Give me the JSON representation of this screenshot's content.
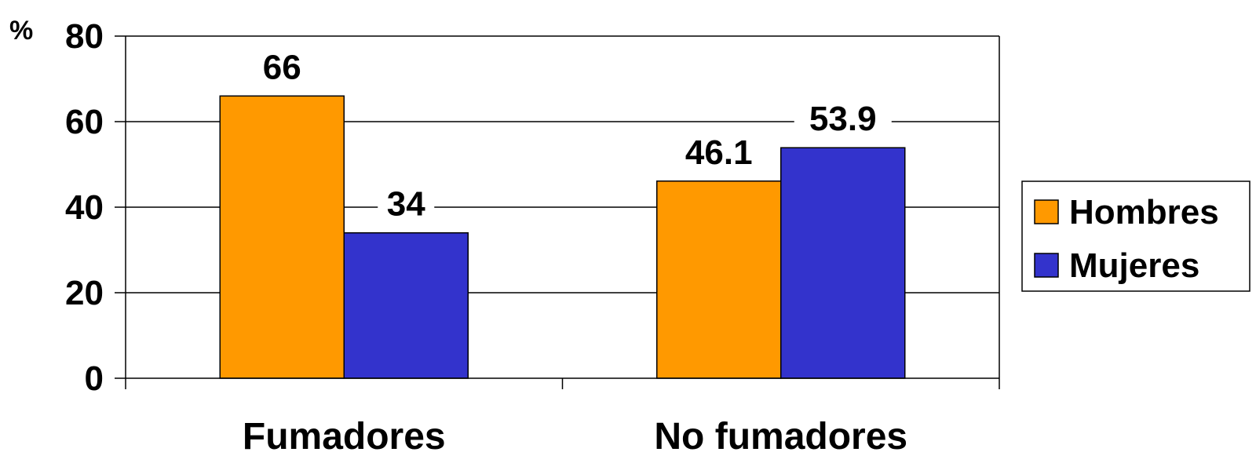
{
  "chart_data": {
    "type": "bar",
    "categories": [
      "Fumadores",
      "No fumadores"
    ],
    "series": [
      {
        "name": "Hombres",
        "values": [
          66,
          46.1
        ],
        "color": "#FF9900",
        "labels": [
          "66",
          "46.1"
        ]
      },
      {
        "name": "Mujeres",
        "values": [
          34,
          53.9
        ],
        "color": "#3333CC",
        "labels": [
          "34",
          "53.9"
        ]
      }
    ],
    "ylabel": "%",
    "ylim": [
      0,
      80
    ],
    "yticks": [
      0,
      20,
      40,
      60,
      80
    ],
    "grid": true,
    "legend_position": "right"
  }
}
